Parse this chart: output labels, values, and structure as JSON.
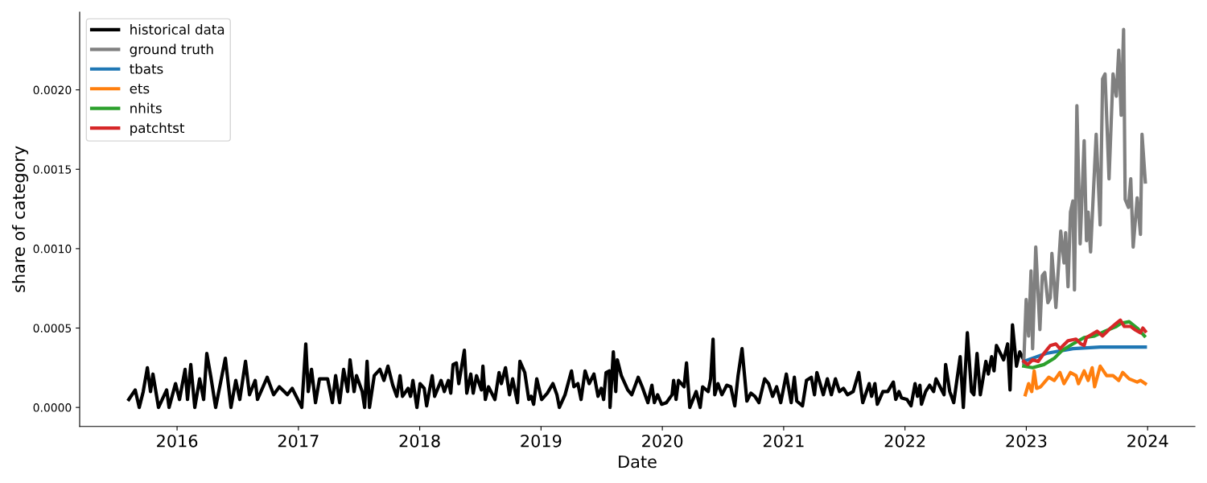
{
  "chart_data": {
    "type": "line",
    "xlabel": "Date",
    "ylabel": "share of category",
    "legend": "top left",
    "xlim": [
      2015.197,
      2024.39
    ],
    "ylim": [
      -0.00012,
      0.00249
    ],
    "xticks": [
      2016,
      2017,
      2018,
      2019,
      2020,
      2021,
      2022,
      2023,
      2024
    ],
    "yticks": [
      {
        "value": 0,
        "label": "0.0000"
      },
      {
        "value": 0.0005,
        "label": "0.0005"
      },
      {
        "value": 0.001,
        "label": "0.0010"
      },
      {
        "value": 0.0015,
        "label": "0.0015"
      },
      {
        "value": 0.002,
        "label": "0.0020"
      }
    ],
    "series": [
      {
        "name": "historical data",
        "color": "#000000",
        "x": [
          2015.602,
          2015.655,
          2015.688,
          2015.721,
          2015.755,
          2015.781,
          2015.801,
          2015.847,
          2015.914,
          2015.934,
          2015.987,
          2016.02,
          2016.066,
          2016.086,
          2016.113,
          2016.146,
          2016.186,
          2016.219,
          2016.245,
          2016.279,
          2016.318,
          2016.398,
          2016.444,
          2016.484,
          2016.517,
          2016.564,
          2016.597,
          2016.644,
          2016.663,
          2016.743,
          2016.796,
          2016.843,
          2016.909,
          2016.949,
          2017.028,
          2017.061,
          2017.081,
          2017.108,
          2017.141,
          2017.174,
          2017.241,
          2017.28,
          2017.307,
          2017.34,
          2017.373,
          2017.406,
          2017.426,
          2017.459,
          2017.479,
          2017.526,
          2017.546,
          2017.566,
          2017.586,
          2017.625,
          2017.672,
          2017.705,
          2017.738,
          2017.778,
          2017.811,
          2017.838,
          2017.858,
          2017.904,
          2017.924,
          2017.944,
          2017.977,
          2018.003,
          2018.037,
          2018.057,
          2018.103,
          2018.123,
          2018.176,
          2018.203,
          2018.236,
          2018.256,
          2018.275,
          2018.302,
          2018.322,
          2018.368,
          2018.388,
          2018.421,
          2018.441,
          2018.468,
          2018.508,
          2018.521,
          2018.541,
          2018.567,
          2018.62,
          2018.654,
          2018.673,
          2018.707,
          2018.74,
          2018.766,
          2018.806,
          2018.826,
          2018.866,
          2018.899,
          2018.919,
          2018.939,
          2018.965,
          2019.005,
          2019.052,
          2019.098,
          2019.131,
          2019.151,
          2019.198,
          2019.251,
          2019.271,
          2019.304,
          2019.33,
          2019.363,
          2019.397,
          2019.436,
          2019.47,
          2019.496,
          2019.516,
          2019.536,
          2019.562,
          2019.569,
          2019.596,
          2019.616,
          2019.629,
          2019.662,
          2019.715,
          2019.748,
          2019.801,
          2019.834,
          2019.881,
          2019.914,
          2019.934,
          2019.961,
          2019.994,
          2020.033,
          2020.08,
          2020.093,
          2020.113,
          2020.133,
          2020.179,
          2020.199,
          2020.226,
          2020.279,
          2020.312,
          2020.332,
          2020.378,
          2020.398,
          2020.418,
          2020.432,
          2020.458,
          2020.491,
          2020.531,
          2020.564,
          2020.597,
          2020.624,
          2020.657,
          2020.697,
          2020.73,
          2020.763,
          2020.796,
          2020.843,
          2020.876,
          2020.909,
          2020.942,
          2020.976,
          2021.022,
          2021.062,
          2021.088,
          2021.108,
          2021.155,
          2021.188,
          2021.228,
          2021.254,
          2021.274,
          2021.327,
          2021.36,
          2021.393,
          2021.427,
          2021.46,
          2021.493,
          2021.526,
          2021.573,
          2021.619,
          2021.652,
          2021.705,
          2021.725,
          2021.752,
          2021.772,
          2021.818,
          2021.858,
          2021.904,
          2021.924,
          2021.951,
          2021.971,
          2022.017,
          2022.05,
          2022.083,
          2022.103,
          2022.123,
          2022.136,
          2022.17,
          2022.203,
          2022.236,
          2022.256,
          2022.289,
          2022.322,
          2022.335,
          2022.369,
          2022.402,
          2022.455,
          2022.481,
          2022.514,
          2022.548,
          2022.568,
          2022.594,
          2022.621,
          2022.667,
          2022.687,
          2022.714,
          2022.734,
          2022.754,
          2022.787,
          2022.813,
          2022.846,
          2022.866,
          2022.886,
          2022.919,
          2022.946,
          2022.979
        ],
        "values": [
          5e-05,
          0.00011,
          0,
          0.0001,
          0.00025,
          0.0001,
          0.00021,
          0,
          0.00011,
          0,
          0.00015,
          5e-05,
          0.00024,
          5e-05,
          0.00027,
          0,
          0.00018,
          5e-05,
          0.00034,
          0.00019,
          0,
          0.00031,
          0,
          0.00017,
          5e-05,
          0.00029,
          8e-05,
          0.00017,
          5e-05,
          0.00019,
          8e-05,
          0.00013,
          8e-05,
          0.00012,
          0,
          0.0004,
          0.0001,
          0.00024,
          3e-05,
          0.00018,
          0.00018,
          3e-05,
          0.0002,
          3e-05,
          0.00024,
          0.0001,
          0.0003,
          0.0001,
          0.0002,
          0.0001,
          0,
          0.00029,
          0,
          0.0002,
          0.00024,
          0.00017,
          0.00026,
          0.00014,
          7e-05,
          0.0002,
          7e-05,
          0.00012,
          7e-05,
          0.00017,
          0,
          0.00015,
          0.00012,
          1e-05,
          0.0002,
          7e-05,
          0.00017,
          0.0001,
          0.00017,
          9e-05,
          0.00027,
          0.00028,
          0.00015,
          0.00036,
          9e-05,
          0.00021,
          9e-05,
          0.0002,
          0.00011,
          0.00026,
          5e-05,
          0.00013,
          5e-05,
          0.00022,
          0.00015,
          0.00025,
          8e-05,
          0.00018,
          3e-05,
          0.00029,
          0.00022,
          5e-05,
          7e-05,
          2e-05,
          0.00018,
          5e-05,
          9e-05,
          0.00015,
          8e-05,
          0,
          8e-05,
          0.00023,
          0.00013,
          0.00015,
          5e-05,
          0.00023,
          0.00015,
          0.00021,
          7e-05,
          0.00012,
          5e-05,
          0.00022,
          0.00023,
          0,
          0.00035,
          0.0001,
          0.0003,
          0.0002,
          0.00011,
          8e-05,
          0.00019,
          0.00013,
          3e-05,
          0.00014,
          3e-05,
          8e-05,
          2e-05,
          3e-05,
          8e-05,
          0.00017,
          5e-05,
          0.00017,
          0.00013,
          0.00028,
          0,
          0.0001,
          0,
          0.00013,
          0.0001,
          0.00018,
          0.00043,
          8e-05,
          0.00015,
          8e-05,
          0.00014,
          0.00013,
          1e-05,
          0.0002,
          0.00037,
          4e-05,
          9e-05,
          7e-05,
          3e-05,
          0.00018,
          0.00015,
          7e-05,
          0.00013,
          3e-05,
          0.00021,
          3e-05,
          0.00019,
          4e-05,
          1e-05,
          0.00017,
          0.00019,
          8e-05,
          0.00022,
          8e-05,
          0.00018,
          8e-05,
          0.00018,
          0.0001,
          0.00012,
          8e-05,
          0.0001,
          0.00022,
          3e-05,
          0.00015,
          7e-05,
          0.00015,
          2e-05,
          0.0001,
          0.0001,
          0.00016,
          5e-05,
          0.0001,
          6e-05,
          5e-05,
          1e-05,
          0.00015,
          7e-05,
          0.00014,
          2e-05,
          0.0001,
          0.00014,
          0.0001,
          0.00018,
          0.00013,
          8e-05,
          0.00027,
          0.0001,
          3e-05,
          0.00032,
          0,
          0.00047,
          0.0001,
          8e-05,
          0.00034,
          8e-05,
          0.00029,
          0.00021,
          0.00032,
          0.00023,
          0.00039,
          0.00034,
          0.0003,
          0.0004,
          0.00011,
          0.00052,
          0.00026,
          0.00035,
          0.0003
        ]
      },
      {
        "name": "ground truth",
        "color": "#808080",
        "x": [
          2022.979,
          2022.999,
          2023.019,
          2023.039,
          2023.052,
          2023.078,
          2023.112,
          2023.132,
          2023.152,
          2023.178,
          2023.198,
          2023.211,
          2023.244,
          2023.284,
          2023.311,
          2023.324,
          2023.344,
          2023.364,
          2023.384,
          2023.397,
          2023.417,
          2023.444,
          2023.477,
          2023.496,
          2023.51,
          2023.53,
          2023.576,
          2023.609,
          2023.629,
          2023.649,
          2023.682,
          2023.715,
          2023.742,
          2023.762,
          2023.782,
          2023.802,
          2023.815,
          2023.842,
          2023.861,
          2023.881,
          2023.914,
          2023.941,
          2023.954,
          2023.981
        ],
        "values": [
          0.00028,
          0.00068,
          0.00045,
          0.00086,
          0.00037,
          0.00101,
          0.00049,
          0.00083,
          0.00085,
          0.00066,
          0.00069,
          0.00097,
          0.00063,
          0.00111,
          0.00091,
          0.0011,
          0.00076,
          0.00123,
          0.0013,
          0.00074,
          0.0019,
          0.00103,
          0.00168,
          0.00105,
          0.00123,
          0.00098,
          0.00172,
          0.00115,
          0.00207,
          0.0021,
          0.00144,
          0.0021,
          0.00196,
          0.00225,
          0.00184,
          0.00238,
          0.00131,
          0.00126,
          0.00144,
          0.00101,
          0.00132,
          0.00109,
          0.00172,
          0.00142
        ]
      },
      {
        "name": "tbats",
        "color": "#1f77b4",
        "x": [
          2022.979,
          2023.165,
          2023.384,
          2023.609,
          2023.828,
          2023.981
        ],
        "values": [
          0.00029,
          0.00034,
          0.00037,
          0.00038,
          0.00038,
          0.00038
        ]
      },
      {
        "name": "ets",
        "color": "#ff7f0e",
        "x": [
          2022.992,
          2023.019,
          2023.045,
          2023.065,
          2023.085,
          2023.118,
          2023.185,
          2023.231,
          2023.277,
          2023.311,
          2023.364,
          2023.41,
          2023.43,
          2023.477,
          2023.51,
          2023.543,
          2023.563,
          2023.609,
          2023.662,
          2023.715,
          2023.762,
          2023.795,
          2023.848,
          2023.914,
          2023.941,
          2023.981
        ],
        "values": [
          8e-05,
          0.00015,
          0.0001,
          0.00023,
          0.00012,
          0.00013,
          0.00019,
          0.00017,
          0.00022,
          0.00015,
          0.00022,
          0.0002,
          0.00015,
          0.00023,
          0.00017,
          0.00025,
          0.00013,
          0.00026,
          0.0002,
          0.0002,
          0.00017,
          0.00022,
          0.00018,
          0.00016,
          0.00017,
          0.00015
        ]
      },
      {
        "name": "nhits",
        "color": "#2ca02c",
        "x": [
          2022.979,
          2023.052,
          2023.145,
          2023.231,
          2023.297,
          2023.384,
          2023.477,
          2023.563,
          2023.649,
          2023.742,
          2023.782,
          2023.848,
          2023.914,
          2023.974
        ],
        "values": [
          0.00026,
          0.00025,
          0.00027,
          0.00031,
          0.00036,
          0.0004,
          0.00044,
          0.00045,
          0.00048,
          0.00051,
          0.00053,
          0.00054,
          0.0005,
          0.00045
        ]
      },
      {
        "name": "patchtst",
        "color": "#d62728",
        "x": [
          2022.979,
          2023.012,
          2023.052,
          2023.098,
          2023.145,
          2023.198,
          2023.244,
          2023.277,
          2023.344,
          2023.41,
          2023.45,
          2023.477,
          2023.496,
          2023.583,
          2023.629,
          2023.695,
          2023.742,
          2023.775,
          2023.808,
          2023.861,
          2023.894,
          2023.941,
          2023.961,
          2023.981
        ],
        "values": [
          0.00029,
          0.00027,
          0.0003,
          0.00029,
          0.00034,
          0.00039,
          0.0004,
          0.00037,
          0.00042,
          0.00043,
          0.0004,
          0.00039,
          0.00044,
          0.00048,
          0.00045,
          0.0005,
          0.00053,
          0.00055,
          0.00051,
          0.00051,
          0.00049,
          0.00047,
          0.0005,
          0.00048
        ]
      }
    ]
  }
}
